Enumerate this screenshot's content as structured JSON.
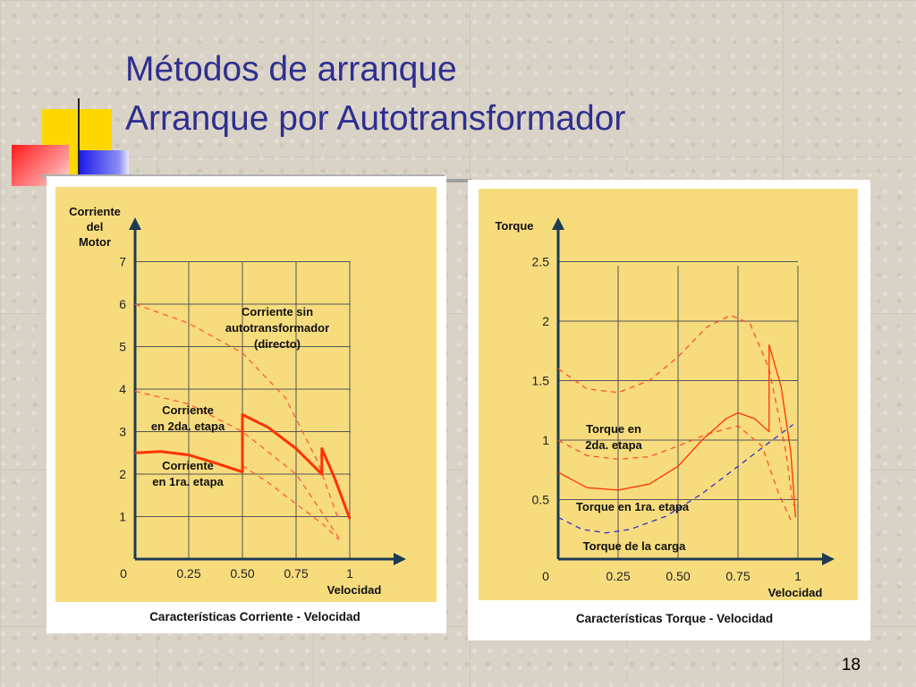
{
  "slide": {
    "title_line1": "Métodos de arranque",
    "title_line2": "Arranque por Autotransformador",
    "page_number": "18",
    "accent_colors": {
      "yellow": "#ffd700",
      "red": "#ff3030",
      "blue": "#2d2df0",
      "title": "#2e2f8f"
    }
  },
  "chart_data": [
    {
      "type": "line",
      "title": "Características Corriente - Velocidad",
      "ylabel": [
        "Corriente",
        "del",
        "Motor"
      ],
      "xlabel": "Velocidad",
      "x_ticks": [
        "0",
        "0.25",
        "0.50",
        "0.75",
        "1"
      ],
      "y_ticks": [
        "1",
        "2",
        "3",
        "4",
        "5",
        "6",
        "7"
      ],
      "x_origin_label": "0",
      "xlim": [
        0,
        1.2
      ],
      "ylim": [
        0,
        7
      ],
      "grid": true,
      "annotations": [
        {
          "lines": [
            "Corriente sin",
            "autotransformador",
            "(directo)"
          ]
        },
        {
          "lines": [
            "Corriente",
            "en 2da. etapa"
          ]
        },
        {
          "lines": [
            "Corriente",
            "en 1ra. etapa"
          ]
        }
      ],
      "series": [
        {
          "style": "dashed",
          "color": "#ff5a3a",
          "x": [
            0,
            0.25,
            0.5,
            0.7,
            0.85,
            0.95
          ],
          "y": [
            6.0,
            5.55,
            4.85,
            3.8,
            2.3,
            0.9
          ]
        },
        {
          "style": "dashed",
          "color": "#ff5a3a",
          "x": [
            0,
            0.25,
            0.5,
            0.75,
            0.95
          ],
          "y": [
            3.95,
            3.65,
            3.0,
            2.0,
            0.5
          ]
        },
        {
          "style": "dashed",
          "color": "#ff5a3a",
          "x": [
            0.5,
            0.62,
            0.75,
            0.88,
            0.95
          ],
          "y": [
            2.2,
            1.8,
            1.3,
            0.8,
            0.45
          ]
        },
        {
          "style": "solid",
          "color": "#ff3300",
          "width": 3,
          "x": [
            0,
            0.12,
            0.25,
            0.38,
            0.5,
            0.5,
            0.62,
            0.75,
            0.87,
            0.87,
            0.93,
            1.0
          ],
          "y": [
            2.5,
            2.53,
            2.45,
            2.25,
            2.05,
            3.4,
            3.1,
            2.6,
            2.0,
            2.6,
            1.9,
            0.95
          ]
        }
      ]
    },
    {
      "type": "line",
      "title": "Características Torque - Velocidad",
      "ylabel": [
        "Torque"
      ],
      "xlabel": "Velocidad",
      "x_ticks": [
        "0.25",
        "0.50",
        "0.75",
        "1"
      ],
      "y_ticks": [
        "0.5",
        "1",
        "1.5",
        "2",
        "2.5"
      ],
      "x_origin_label": "0",
      "xlim": [
        0,
        1.2
      ],
      "ylim": [
        0,
        2.5
      ],
      "grid": true,
      "annotations": [
        {
          "lines": [
            "Torque en",
            "2da. etapa"
          ]
        },
        {
          "lines": [
            "Torque en 1ra. etapa"
          ]
        },
        {
          "lines": [
            "Torque de la carga"
          ]
        }
      ],
      "series": [
        {
          "style": "dashed",
          "color": "#ff4d2e",
          "x": [
            0,
            0.12,
            0.25,
            0.38,
            0.5,
            0.62,
            0.72,
            0.8,
            0.88,
            0.95,
            0.98
          ],
          "y": [
            1.6,
            1.43,
            1.4,
            1.5,
            1.7,
            1.95,
            2.05,
            1.98,
            1.6,
            0.9,
            0.45
          ]
        },
        {
          "style": "dashed",
          "color": "#ff4d2e",
          "x": [
            0,
            0.12,
            0.25,
            0.38,
            0.5,
            0.62,
            0.75,
            0.85,
            0.92,
            0.97
          ],
          "y": [
            1.0,
            0.87,
            0.84,
            0.86,
            0.95,
            1.05,
            1.12,
            0.95,
            0.55,
            0.33
          ]
        },
        {
          "style": "dashed",
          "color": "#3333cc",
          "x": [
            0,
            0.1,
            0.2,
            0.3,
            0.45,
            0.6,
            0.75,
            0.88,
            0.98
          ],
          "y": [
            0.35,
            0.25,
            0.22,
            0.25,
            0.36,
            0.55,
            0.78,
            0.98,
            1.13
          ]
        },
        {
          "style": "solid",
          "color": "#ff3300",
          "x": [
            0,
            0.12,
            0.25,
            0.38,
            0.5,
            0.6,
            0.7,
            0.75,
            0.82,
            0.88
          ],
          "y": [
            0.73,
            0.6,
            0.58,
            0.63,
            0.78,
            1.0,
            1.18,
            1.23,
            1.18,
            1.07
          ]
        },
        {
          "style": "solid",
          "color": "#ff3300",
          "x": [
            0.88,
            0.88,
            0.93,
            0.97,
            0.99
          ],
          "y": [
            1.07,
            1.8,
            1.45,
            0.9,
            0.35
          ]
        }
      ]
    }
  ]
}
